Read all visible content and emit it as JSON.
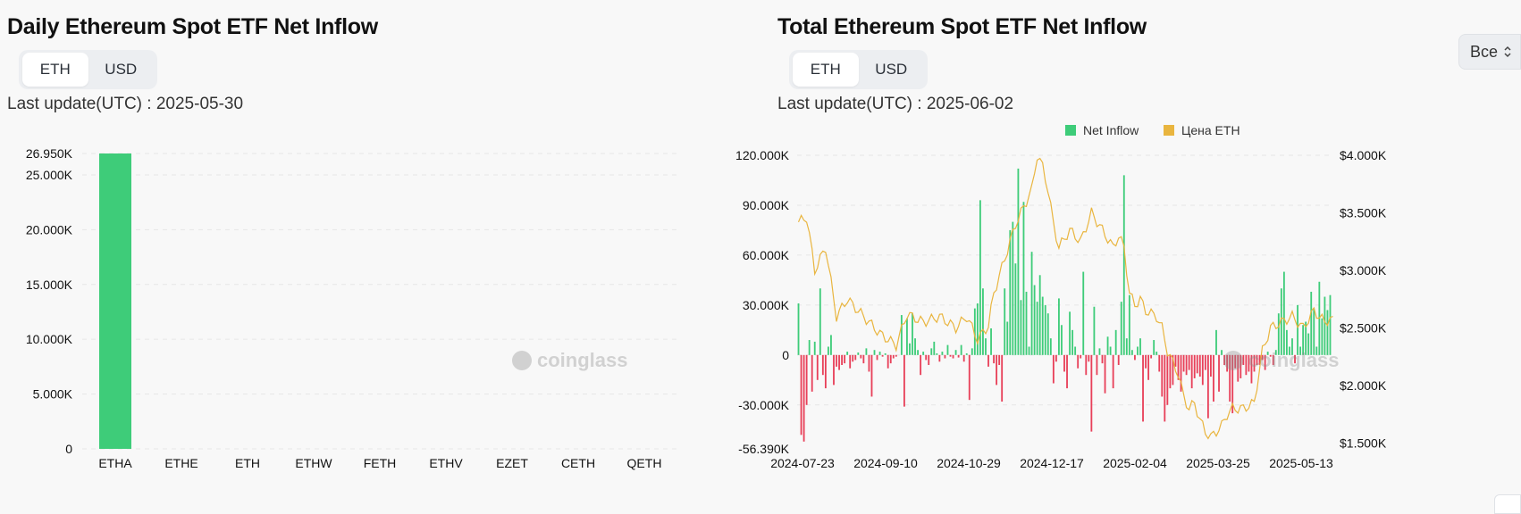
{
  "colors": {
    "green": "#3ecc79",
    "red": "#e84059",
    "gold": "#e9b53f",
    "grid": "#e6e6e6"
  },
  "left_panel": {
    "title": "Daily Ethereum Spot ETF Net Inflow",
    "toggle": {
      "eth": "ETH",
      "usd": "USD"
    },
    "last_update": "Last update(UTC) : 2025-05-30",
    "watermark": "coinglass"
  },
  "right_panel": {
    "title": "Total Ethereum Spot ETF Net Inflow",
    "toggle": {
      "eth": "ETH",
      "usd": "USD"
    },
    "last_update": "Last update(UTC) : 2025-06-02",
    "select_label": "Все",
    "watermark": "coinglass",
    "legend": {
      "inflow": "Net Inflow",
      "price": "Цена ETH"
    }
  },
  "chart_data": [
    {
      "type": "bar",
      "title": "Daily Ethereum Spot ETF Net Inflow",
      "categories": [
        "ETHA",
        "ETHE",
        "ETH",
        "ETHW",
        "FETH",
        "ETHV",
        "EZET",
        "CETH",
        "QETH"
      ],
      "values": [
        26950,
        0,
        0,
        0,
        0,
        0,
        0,
        0,
        0
      ],
      "ylim": [
        0,
        26950
      ],
      "yticks": [
        0,
        5000,
        10000,
        15000,
        20000,
        25000,
        26950
      ],
      "ytick_labels": [
        "0",
        "5.000K",
        "10.000K",
        "15.000K",
        "20.000K",
        "25.000K",
        "26.950K"
      ]
    },
    {
      "type": "bar+line",
      "title": "Total Ethereum Spot ETF Net Inflow",
      "xlabels": [
        "2024-07-23",
        "2024-09-10",
        "2024-10-29",
        "2024-12-17",
        "2025-02-04",
        "2025-03-25",
        "2025-05-13"
      ],
      "y_left": {
        "ylim": [
          -56390,
          120000
        ],
        "ticks": [
          -56390,
          -30000,
          0,
          30000,
          60000,
          90000,
          120000
        ],
        "tick_labels": [
          "-56.390K",
          "-30.000K",
          "0",
          "30.000K",
          "60.000K",
          "90.000K",
          "120.000K"
        ]
      },
      "y_right": {
        "ylim": [
          1450,
          4000
        ],
        "ticks": [
          1500,
          2000,
          2500,
          3000,
          3500,
          4000
        ],
        "tick_labels": [
          "$1.500K",
          "$2.000K",
          "$2.500K",
          "$3.000K",
          "$3.500K",
          "$4.000K"
        ]
      },
      "series": [
        {
          "name": "Net Inflow",
          "values": [
            31000,
            -48000,
            -52000,
            -30000,
            9000,
            -22000,
            8000,
            -15000,
            40000,
            -12000,
            -20000,
            5000,
            12000,
            -18000,
            -7000,
            -9000,
            -6000,
            -5000,
            2000,
            -8000,
            -4000,
            -3000,
            1500,
            -2000,
            -5000,
            4000,
            -10000,
            -25000,
            3000,
            -3000,
            2000,
            -1000,
            1000,
            -8000,
            -5000,
            -2000,
            -1000,
            0,
            24000,
            -31000,
            22000,
            7000,
            25000,
            10000,
            3000,
            -12000,
            2000,
            -3000,
            -6000,
            4000,
            8000,
            1000,
            -4000,
            2000,
            -2000,
            6000,
            -1000,
            -2000,
            3000,
            -1500,
            6000,
            -4000,
            1000,
            -27000,
            4000,
            28000,
            31000,
            93000,
            40000,
            10000,
            -7000,
            16000,
            -5000,
            -18000,
            -6000,
            -28000,
            40000,
            20000,
            75000,
            80000,
            55000,
            112000,
            33000,
            92000,
            38000,
            5000,
            62000,
            42000,
            32000,
            48000,
            35000,
            30000,
            25000,
            10000,
            -17000,
            -4000,
            34000,
            18000,
            -10000,
            -20000,
            26000,
            15000,
            5000,
            -8000,
            -2000,
            50000,
            -12000,
            -4000,
            -46000,
            29000,
            -12000,
            4000,
            -5000,
            -23000,
            11000,
            5000,
            -20000,
            15000,
            -6000,
            32000,
            108000,
            10000,
            36000,
            3000,
            -3000,
            5000,
            10000,
            -40000,
            -8000,
            -15000,
            -2000,
            9000,
            2000,
            -10000,
            -25000,
            -40000,
            -30000,
            -20000,
            -18000,
            -7000,
            -15000,
            -22000,
            -10000,
            -12000,
            -9000,
            -20000,
            -14000,
            -11000,
            -13000,
            -18000,
            -9000,
            -38000,
            -13000,
            -28000,
            15000,
            -22000,
            3000,
            -6000,
            -10000,
            -28000,
            -35000,
            -8000,
            -16000,
            -14000,
            -6000,
            -12000,
            -10000,
            -17000,
            -10000,
            -6000,
            -6000,
            -3000,
            -9000,
            2000,
            -1000,
            -6000,
            3000,
            25000,
            40000,
            50000,
            15000,
            5000,
            10000,
            -5000,
            30000,
            5000,
            18000,
            20000,
            13000,
            38000,
            28000,
            5000,
            44000,
            22000,
            35000,
            27000,
            36000
          ],
          "color": "green/red by sign"
        },
        {
          "name": "Цена ETH",
          "anchors": [
            [
              0,
              3420
            ],
            [
              3,
              3460
            ],
            [
              6,
              3000
            ],
            [
              10,
              3200
            ],
            [
              14,
              2600
            ],
            [
              18,
              2750
            ],
            [
              24,
              2600
            ],
            [
              30,
              2450
            ],
            [
              36,
              2350
            ],
            [
              40,
              2620
            ],
            [
              46,
              2550
            ],
            [
              52,
              2600
            ],
            [
              58,
              2500
            ],
            [
              62,
              2600
            ],
            [
              66,
              2400
            ],
            [
              70,
              2520
            ],
            [
              72,
              2800
            ],
            [
              76,
              3100
            ],
            [
              80,
              3400
            ],
            [
              84,
              3600
            ],
            [
              86,
              3700
            ],
            [
              88,
              4000
            ],
            [
              90,
              3900
            ],
            [
              92,
              3700
            ],
            [
              94,
              3400
            ],
            [
              96,
              3200
            ],
            [
              100,
              3350
            ],
            [
              104,
              3250
            ],
            [
              108,
              3500
            ],
            [
              112,
              3350
            ],
            [
              116,
              3200
            ],
            [
              118,
              3300
            ],
            [
              120,
              3200
            ],
            [
              122,
              2800
            ],
            [
              124,
              2700
            ],
            [
              126,
              2750
            ],
            [
              128,
              2650
            ],
            [
              132,
              2600
            ],
            [
              134,
              2500
            ],
            [
              136,
              2300
            ],
            [
              138,
              2200
            ],
            [
              140,
              2100
            ],
            [
              142,
              1900
            ],
            [
              144,
              1800
            ],
            [
              146,
              1850
            ],
            [
              148,
              1700
            ],
            [
              150,
              1600
            ],
            [
              152,
              1550
            ],
            [
              154,
              1600
            ],
            [
              156,
              1650
            ],
            [
              158,
              1750
            ],
            [
              160,
              1800
            ],
            [
              164,
              1800
            ],
            [
              168,
              1850
            ],
            [
              171,
              2300
            ],
            [
              174,
              2500
            ],
            [
              178,
              2550
            ],
            [
              182,
              2600
            ],
            [
              186,
              2500
            ],
            [
              190,
              2650
            ],
            [
              194,
              2550
            ],
            [
              197,
              2600
            ]
          ]
        }
      ]
    }
  ]
}
